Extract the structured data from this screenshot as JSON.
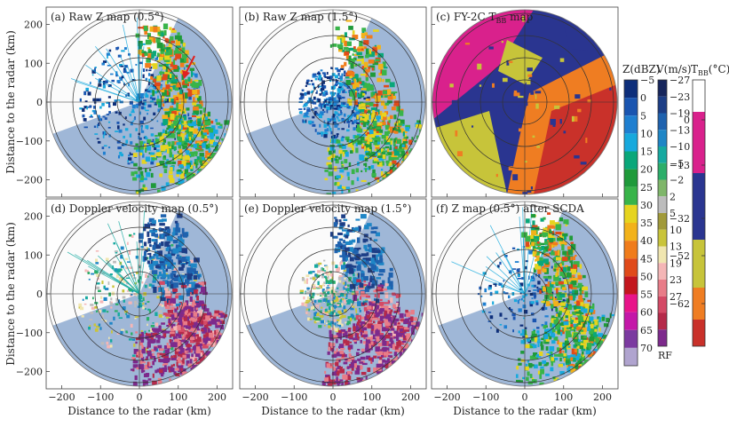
{
  "figure": {
    "ylabel": "Distance to the radar (km)",
    "xlabel": "Distance to the radar (km)",
    "xticks": [
      "−200",
      "−100",
      "0",
      "100",
      "200"
    ],
    "yticks": [
      "200",
      "100",
      "0",
      "−100",
      "−200"
    ],
    "panels": [
      {
        "id": "a",
        "title": "(a) Raw Z map (0.5°)",
        "kind": "reflectivity",
        "seed": 11
      },
      {
        "id": "b",
        "title": "(b) Raw Z map (1.5°)",
        "kind": "reflectivity-high",
        "seed": 23
      },
      {
        "id": "c",
        "title": "(c) FY-2C T",
        "title_sub": "BB",
        "title_tail": " map",
        "kind": "satellite",
        "seed": 37
      },
      {
        "id": "d",
        "title": "(d) Doppler velocity map (0.5°)",
        "kind": "velocity",
        "seed": 41
      },
      {
        "id": "e",
        "title": "(e) Doppler velocity map (1.5°)",
        "kind": "velocity-high",
        "seed": 53
      },
      {
        "id": "f",
        "title": "(f) Z map (0.5°) after SCDA",
        "kind": "reflectivity-clean",
        "seed": 67
      }
    ],
    "colorbars": {
      "z": {
        "label": "Z(dBZ)",
        "ticks": [
          "−5",
          "0",
          "5",
          "10",
          "15",
          "20",
          "25",
          "30",
          "35",
          "40",
          "45",
          "50",
          "55",
          "60",
          "65",
          "70"
        ],
        "colors": [
          "#0d2e7a",
          "#1a55b0",
          "#1f7fd0",
          "#17a9dd",
          "#0aa77a",
          "#1f9a3a",
          "#38b449",
          "#e6d41f",
          "#f2b21a",
          "#f07c1b",
          "#e04a1a",
          "#c3161e",
          "#e8148a",
          "#c417a8",
          "#7b3aa0",
          "#b0a4cf"
        ]
      },
      "v": {
        "label": "V(m/s)",
        "ticks": [
          "−27",
          "−23",
          "−19",
          "−13",
          "−10",
          "−5",
          "−2",
          "2",
          "5",
          "10",
          "13",
          "19",
          "23",
          "27"
        ],
        "rf": "RF",
        "colors": [
          "#17265c",
          "#1d3e86",
          "#1f62ae",
          "#1f86c6",
          "#16a9a0",
          "#2cae6a",
          "#7fb66a",
          "#bcbcbc",
          "#a19a3a",
          "#c9c43a",
          "#f0e6b0",
          "#f4b6b6",
          "#e87c88",
          "#d44a66",
          "#b52a4a",
          "#7d2a8c"
        ]
      },
      "t": {
        "label": "T",
        "label_sub": "BB",
        "label_tail": "(°C)",
        "ticks": [
          "0",
          "−13",
          "−32",
          "−52",
          "−62"
        ],
        "colors": [
          "#ffffff",
          "#d9218c",
          "#2a3590",
          "#c7c43a",
          "#ef7d22",
          "#c9312a"
        ]
      }
    },
    "colors": {
      "disk": "#9fb7d7",
      "wedge": "#fbfbfb",
      "ring": "#333333"
    }
  }
}
